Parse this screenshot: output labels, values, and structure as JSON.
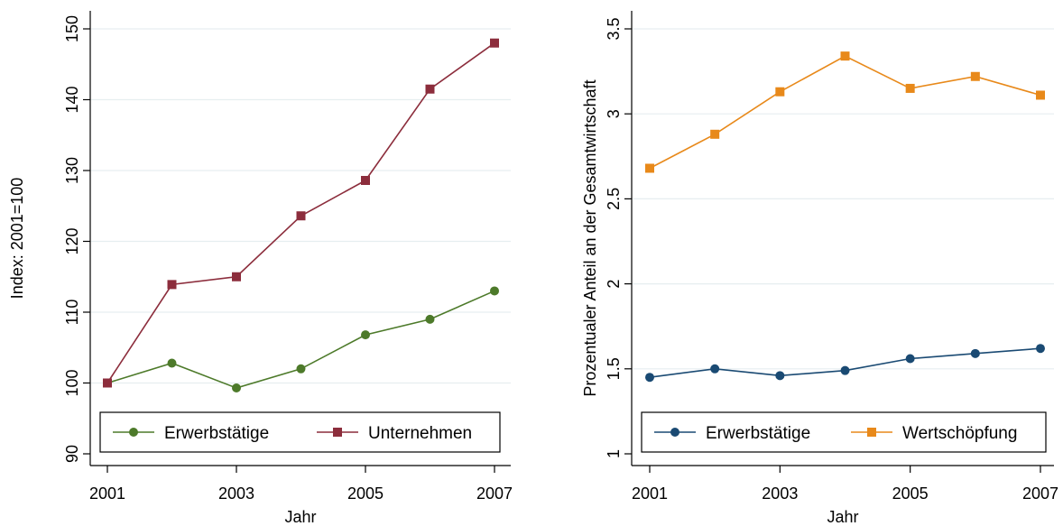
{
  "chart_data": [
    {
      "type": "line",
      "xlabel": "Jahr",
      "ylabel": "Index: 2001=100",
      "x": [
        2001,
        2002,
        2003,
        2004,
        2005,
        2006,
        2007
      ],
      "xticks": [
        2001,
        2003,
        2005,
        2007
      ],
      "ylim": [
        90,
        150
      ],
      "yticks": [
        90,
        100,
        110,
        120,
        130,
        140,
        150
      ],
      "grid": true,
      "legend_position": "bottom",
      "series": [
        {
          "name": "Erwerbstätige",
          "marker": "circle",
          "color": "#4d7a2a",
          "values": [
            100,
            102.8,
            99.3,
            102,
            106.8,
            109,
            113
          ]
        },
        {
          "name": "Unternehmen",
          "marker": "square",
          "color": "#8c2d3c",
          "values": [
            100,
            113.9,
            115,
            123.6,
            128.6,
            141.5,
            148
          ]
        }
      ]
    },
    {
      "type": "line",
      "xlabel": "Jahr",
      "ylabel": "Prozentualer Anteil an der Gesamtwirtschaft",
      "x": [
        2001,
        2002,
        2003,
        2004,
        2005,
        2006,
        2007
      ],
      "xticks": [
        2001,
        2003,
        2005,
        2007
      ],
      "ylim": [
        1,
        3.5
      ],
      "yticks": [
        1,
        1.5,
        2,
        2.5,
        3,
        3.5
      ],
      "grid": true,
      "legend_position": "bottom",
      "series": [
        {
          "name": "Erwerbstätige",
          "marker": "circle",
          "color": "#1a4a73",
          "values": [
            1.45,
            1.5,
            1.46,
            1.49,
            1.56,
            1.59,
            1.62
          ]
        },
        {
          "name": "Wertschöpfung",
          "marker": "square",
          "color": "#e8891a",
          "values": [
            2.68,
            2.88,
            3.13,
            3.34,
            3.15,
            3.22,
            3.11
          ]
        }
      ]
    }
  ]
}
